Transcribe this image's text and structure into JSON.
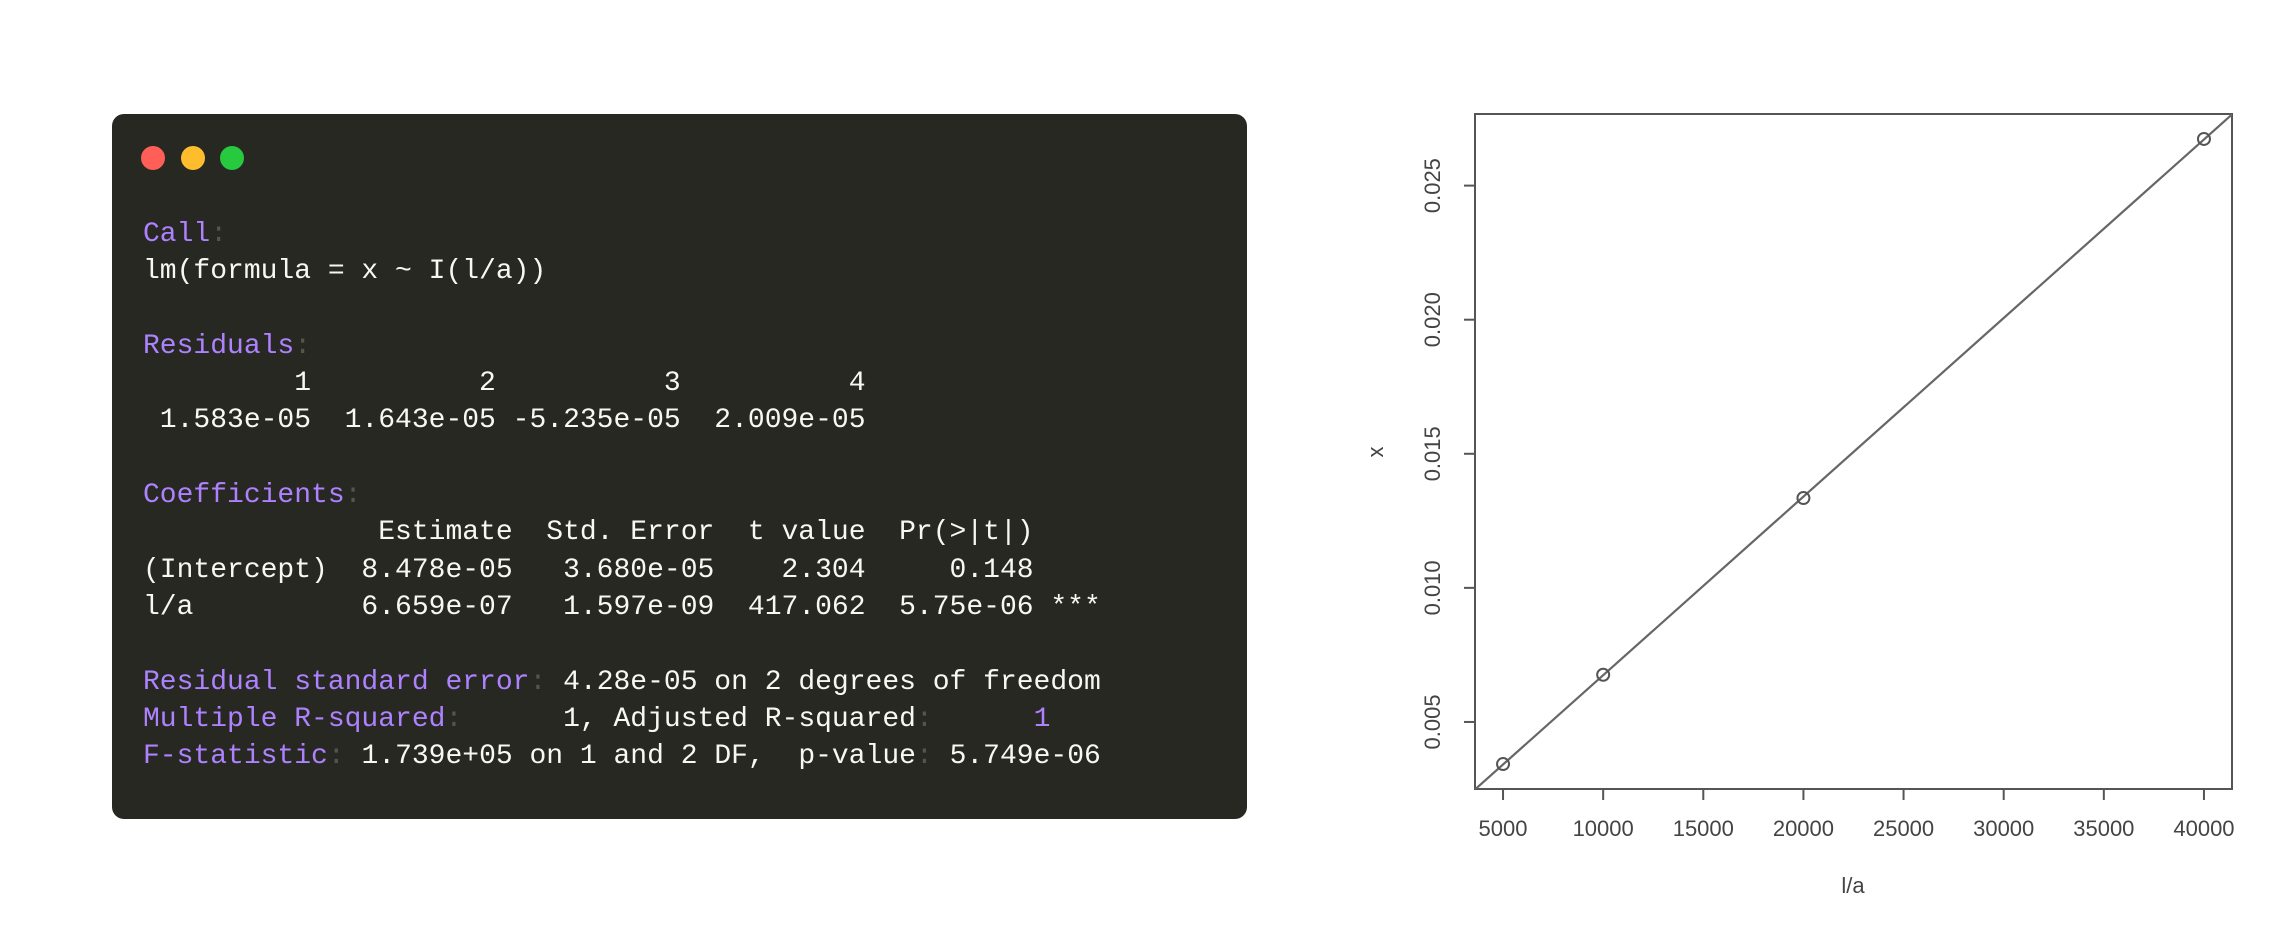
{
  "terminal": {
    "lines": [
      [
        {
          "text": "Call",
          "color": "#ae81ff"
        },
        {
          "text": ":",
          "color": "#55554d"
        }
      ],
      [
        {
          "text": "lm(formula = x ~ I(l/a))",
          "color": "#f8f8f2"
        }
      ],
      [],
      [
        {
          "text": "Residuals",
          "color": "#ae81ff"
        },
        {
          "text": ":",
          "color": "#55554d"
        }
      ],
      [
        {
          "text": "         1          2          3          4",
          "color": "#f8f8f2"
        }
      ],
      [
        {
          "text": " 1.583e-05  1.643e-05 -5.235e-05  2.009e-05",
          "color": "#f8f8f2"
        }
      ],
      [],
      [
        {
          "text": "Coefficients",
          "color": "#ae81ff"
        },
        {
          "text": ":",
          "color": "#55554d"
        }
      ],
      [
        {
          "text": "              Estimate  Std. Error  t value  Pr(>|t|)",
          "color": "#f8f8f2"
        }
      ],
      [
        {
          "text": "(Intercept)  8.478e-05   3.680e-05    2.304     0.148",
          "color": "#f8f8f2"
        }
      ],
      [
        {
          "text": "l/a          6.659e-07   1.597e-09  417.062  5.75e-06 ***",
          "color": "#f8f8f2"
        }
      ],
      [],
      [
        {
          "text": "Residual standard error",
          "color": "#ae81ff"
        },
        {
          "text": ":",
          "color": "#55554d"
        },
        {
          "text": " 4.28e-05 on 2 degrees of freedom",
          "color": "#f8f8f2"
        }
      ],
      [
        {
          "text": "Multiple R-squared",
          "color": "#ae81ff"
        },
        {
          "text": ":",
          "color": "#55554d"
        },
        {
          "text": "      1, Adjusted R-squared",
          "color": "#f8f8f2"
        },
        {
          "text": ":",
          "color": "#55554d"
        },
        {
          "text": "      1",
          "color": "#ae81ff"
        }
      ],
      [
        {
          "text": "F-statistic",
          "color": "#ae81ff"
        },
        {
          "text": ":",
          "color": "#55554d"
        },
        {
          "text": " 1.739e+05 on 1 and 2 DF,  p-value",
          "color": "#f8f8f2"
        },
        {
          "text": ":",
          "color": "#55554d"
        },
        {
          "text": " 5.749e-06",
          "color": "#f8f8f2"
        }
      ]
    ]
  },
  "chart_data": {
    "type": "scatter",
    "x_label": "l/a",
    "y_label": "x",
    "series": [
      {
        "x": [
          5000,
          10000,
          20000,
          40000
        ],
        "values": [
          0.00343,
          0.00676,
          0.01335,
          0.02674
        ],
        "color": "#555555"
      }
    ],
    "fit": {
      "intercept": 8.478e-05,
      "slope": 6.659e-07
    },
    "xlim": [
      3600,
      41400
    ],
    "ylim": [
      0.0025,
      0.02767
    ],
    "xticks": [
      5000,
      10000,
      15000,
      20000,
      25000,
      30000,
      35000,
      40000
    ],
    "yticks": [
      0.005,
      {
        "value": 0.01,
        "label": "0.010"
      },
      0.015,
      {
        "value": 0.02,
        "label": "0.020"
      },
      0.025
    ]
  }
}
